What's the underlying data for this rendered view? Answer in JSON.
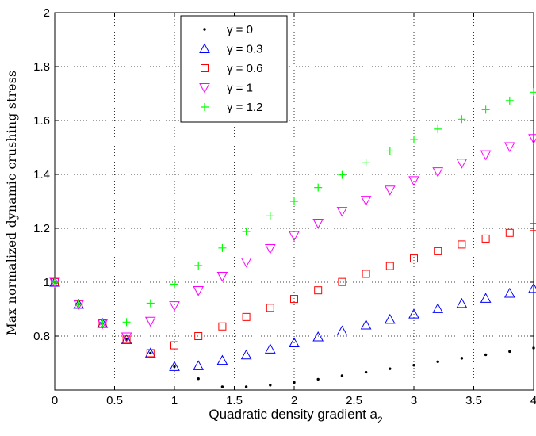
{
  "chart_data": {
    "type": "scatter",
    "xlabel": "Quadratic density gradient a",
    "xlabel_subscript": "2",
    "ylabel": "Max normalized dynamic crushing stress",
    "xlim": [
      0,
      4
    ],
    "ylim": [
      0.6,
      2.0
    ],
    "xticks": [
      0,
      0.5,
      1,
      1.5,
      2,
      2.5,
      3,
      3.5,
      4
    ],
    "xtick_labels": [
      "0",
      "0.5",
      "1",
      "1.5",
      "2",
      "2.5",
      "3",
      "3.5",
      "4"
    ],
    "yticks": [
      0.8,
      1.0,
      1.2,
      1.4,
      1.6,
      1.8,
      2.0
    ],
    "ytick_labels": [
      "0.8",
      "1",
      "1.2",
      "1.4",
      "1.6",
      "1.8",
      "2"
    ],
    "grid": true,
    "legend_position": "top-center",
    "x": [
      0,
      0.2,
      0.4,
      0.6,
      0.8,
      1.0,
      1.2,
      1.4,
      1.6,
      1.8,
      2.0,
      2.2,
      2.4,
      2.6,
      2.8,
      3.0,
      3.2,
      3.4,
      3.6,
      3.8,
      4.0
    ],
    "series": [
      {
        "name": "γ = 0",
        "marker": "dot",
        "color": "#000000",
        "values": [
          1.0,
          0.918,
          0.847,
          0.787,
          0.737,
          0.687,
          0.642,
          0.612,
          0.612,
          0.618,
          0.628,
          0.64,
          0.653,
          0.666,
          0.679,
          0.692,
          0.705,
          0.718,
          0.731,
          0.743,
          0.756
        ]
      },
      {
        "name": "γ = 0.3",
        "marker": "triangle-up",
        "color": "#0000ff",
        "values": [
          1.0,
          0.918,
          0.847,
          0.787,
          0.737,
          0.687,
          0.69,
          0.71,
          0.73,
          0.752,
          0.775,
          0.797,
          0.819,
          0.841,
          0.862,
          0.882,
          0.902,
          0.921,
          0.94,
          0.959,
          0.977
        ]
      },
      {
        "name": "γ = 0.6",
        "marker": "square",
        "color": "#ff0000",
        "values": [
          1.0,
          0.918,
          0.847,
          0.787,
          0.737,
          0.766,
          0.8,
          0.836,
          0.871,
          0.905,
          0.938,
          0.97,
          1.001,
          1.031,
          1.06,
          1.088,
          1.115,
          1.14,
          1.162,
          1.183,
          1.205
        ]
      },
      {
        "name": "γ = 1",
        "marker": "triangle-down",
        "color": "#ff00ff",
        "values": [
          1.0,
          0.918,
          0.847,
          0.797,
          0.855,
          0.913,
          0.969,
          1.022,
          1.075,
          1.125,
          1.173,
          1.219,
          1.263,
          1.304,
          1.342,
          1.377,
          1.41,
          1.442,
          1.473,
          1.503,
          1.533
        ]
      },
      {
        "name": "γ = 1.2",
        "marker": "plus",
        "color": "#00ff00",
        "values": [
          1.0,
          0.918,
          0.847,
          0.852,
          0.922,
          0.993,
          1.062,
          1.127,
          1.188,
          1.246,
          1.3,
          1.351,
          1.398,
          1.443,
          1.487,
          1.529,
          1.568,
          1.605,
          1.64,
          1.674,
          1.705
        ]
      }
    ]
  }
}
